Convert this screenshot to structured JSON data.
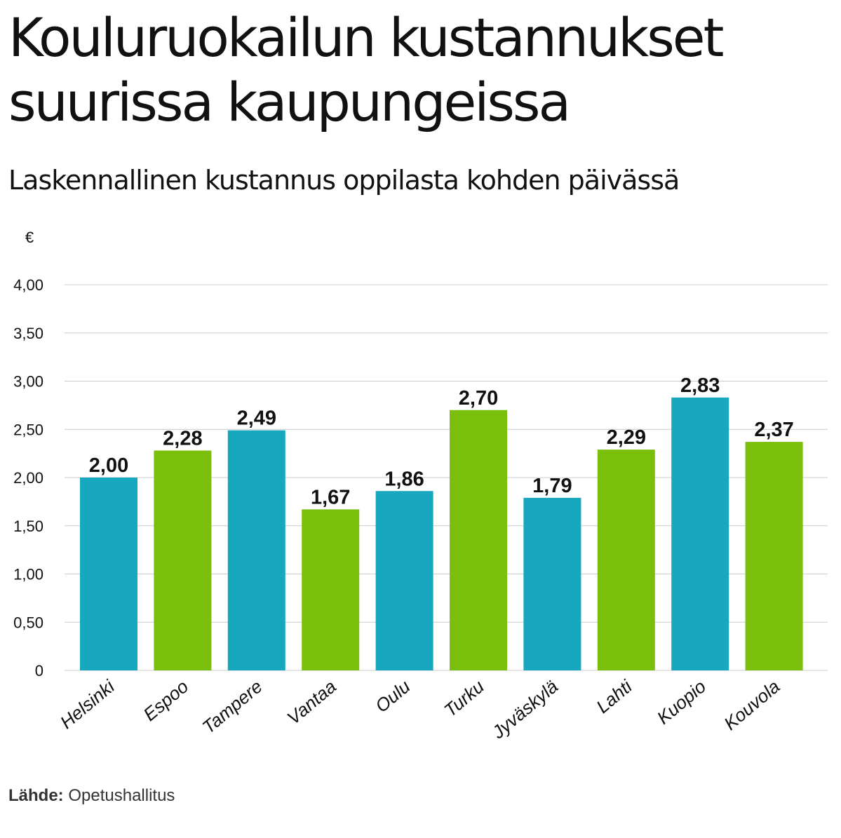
{
  "header": {
    "title": "Kouluruokailun kustannukset suurissa kaupungeissa",
    "subtitle": "Laskennallinen kustannus oppilasta kohden päivässä"
  },
  "footer": {
    "source_label": "Lähde:",
    "source_value": "Opetushallitus"
  },
  "colors": {
    "teal": "#17A7BE",
    "green": "#79BF0B",
    "grid": "#CCCCCC"
  },
  "chart_data": {
    "type": "bar",
    "title": "Kouluruokailun kustannukset suurissa kaupungeissa",
    "subtitle": "Laskennallinen kustannus oppilasta kohden päivässä",
    "ylabel": "€",
    "xlabel": "",
    "ylim": [
      0,
      4
    ],
    "yticks": [
      0,
      0.5,
      1,
      1.5,
      2,
      2.5,
      3,
      3.5,
      4
    ],
    "ytick_labels": [
      "0",
      "0,50",
      "1,00",
      "1,50",
      "2,00",
      "2,50",
      "3,00",
      "3,50",
      "4,00"
    ],
    "grid": true,
    "categories": [
      "Helsinki",
      "Espoo",
      "Tampere",
      "Vantaa",
      "Oulu",
      "Turku",
      "Jyväskylä",
      "Lahti",
      "Kuopio",
      "Kouvola"
    ],
    "values": [
      2.0,
      2.28,
      2.49,
      1.67,
      1.86,
      2.7,
      1.79,
      2.29,
      2.83,
      2.37
    ],
    "value_labels": [
      "2,00",
      "2,28",
      "2,49",
      "1,67",
      "1,86",
      "2,70",
      "1,79",
      "2,29",
      "2,83",
      "2,37"
    ],
    "bar_colors": [
      "#17A7BE",
      "#79BF0B",
      "#17A7BE",
      "#79BF0B",
      "#17A7BE",
      "#79BF0B",
      "#17A7BE",
      "#79BF0B",
      "#17A7BE",
      "#79BF0B"
    ]
  }
}
